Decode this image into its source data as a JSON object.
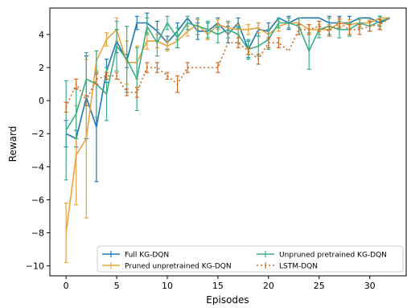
{
  "chart_data": {
    "type": "line",
    "title": "",
    "xlabel": "Episodes",
    "ylabel": "Reward",
    "xlim": [
      -1.6,
      33.6
    ],
    "ylim": [
      -10.6,
      5.6
    ],
    "xticks": [
      0,
      5,
      10,
      15,
      20,
      25,
      30
    ],
    "yticks": [
      -10,
      -8,
      -6,
      -4,
      -2,
      0,
      2,
      4
    ],
    "grid": false,
    "legend": {
      "placement": "lower-right",
      "columns": 2
    },
    "series": [
      {
        "name": "Full KG-DQN",
        "color": "#1f77b4",
        "style": "solid",
        "x": [
          0,
          1,
          2,
          3,
          4,
          5,
          6,
          7,
          8,
          9,
          10,
          11,
          12,
          13,
          14,
          15,
          16,
          17,
          18,
          19,
          20,
          21,
          22,
          23,
          24,
          25,
          26,
          27,
          28,
          29,
          30,
          31,
          32
        ],
        "y": [
          -2.0,
          -2.3,
          0.2,
          -1.6,
          1.8,
          3.6,
          2.4,
          4.7,
          4.7,
          4.2,
          3.5,
          4.2,
          5.0,
          4.2,
          4.2,
          4.7,
          4.0,
          4.7,
          3.1,
          4.3,
          4.2,
          5.0,
          4.7,
          5.0,
          5.0,
          5.0,
          4.7,
          4.7,
          4.7,
          5.0,
          5.0,
          4.7,
          5.0
        ],
        "err": [
          0.8,
          0.5,
          2.5,
          3.3,
          0.7,
          0.7,
          0.4,
          0.4,
          0.6,
          0.6,
          0.4,
          0.5,
          0.0,
          0.5,
          0.5,
          0.3,
          0.5,
          0.3,
          0.5,
          0.4,
          0.5,
          0.0,
          0.4,
          0.0,
          0.0,
          0.0,
          0.4,
          0.4,
          0.4,
          0.0,
          0.0,
          0.4,
          0.0
        ]
      },
      {
        "name": "Pruned unpretrained KG-DQN",
        "color": "#e8a33c",
        "style": "solid",
        "x": [
          0,
          1,
          2,
          3,
          4,
          5,
          6,
          7,
          8,
          9,
          10,
          11,
          12,
          13,
          14,
          15,
          16,
          17,
          18,
          19,
          20,
          21,
          22,
          23,
          24,
          25,
          26,
          27,
          28,
          29,
          30,
          31,
          32
        ],
        "y": [
          -8.0,
          -3.3,
          -2.3,
          2.4,
          3.7,
          4.3,
          2.3,
          2.3,
          3.6,
          3.6,
          3.3,
          3.6,
          4.2,
          4.6,
          4.0,
          4.6,
          4.4,
          4.3,
          4.3,
          4.4,
          4.0,
          4.5,
          4.7,
          4.7,
          4.3,
          4.3,
          4.3,
          4.7,
          4.6,
          4.7,
          4.7,
          5.0,
          5.0
        ],
        "err": [
          1.8,
          3.0,
          4.8,
          0.6,
          0.4,
          0.7,
          1.3,
          1.0,
          0.5,
          0.4,
          0.3,
          0.4,
          0.3,
          0.3,
          0.3,
          0.3,
          0.3,
          0.3,
          0.3,
          0.3,
          0.3,
          0.3,
          0.3,
          0.3,
          0.3,
          0.3,
          0.3,
          0.2,
          0.3,
          0.2,
          0.2,
          0.0,
          0.0
        ]
      },
      {
        "name": "Unpruned pretrained KG-DQN",
        "color": "#3aaf85",
        "style": "solid",
        "x": [
          0,
          1,
          2,
          3,
          4,
          5,
          6,
          7,
          8,
          9,
          10,
          11,
          12,
          13,
          14,
          15,
          16,
          17,
          18,
          19,
          20,
          21,
          22,
          23,
          24,
          25,
          26,
          27,
          28,
          29,
          30,
          31,
          32
        ],
        "y": [
          -1.8,
          -0.8,
          1.3,
          1.0,
          0.4,
          3.3,
          2.5,
          1.3,
          4.5,
          3.5,
          4.7,
          3.8,
          4.7,
          4.5,
          4.3,
          4.0,
          4.3,
          4.0,
          3.1,
          3.3,
          3.7,
          4.7,
          4.7,
          4.5,
          3.0,
          4.3,
          4.5,
          4.3,
          4.3,
          4.7,
          4.5,
          4.8,
          5.0
        ],
        "err": [
          3.0,
          1.5,
          1.6,
          2.0,
          1.6,
          1.5,
          2.0,
          1.9,
          0.5,
          0.8,
          0.4,
          0.6,
          0.4,
          0.5,
          0.5,
          0.5,
          0.5,
          0.5,
          0.6,
          0.6,
          0.6,
          0.3,
          0.3,
          0.5,
          1.1,
          0.5,
          0.5,
          0.5,
          0.4,
          0.3,
          0.3,
          0.3,
          0.0
        ]
      },
      {
        "name": "LSTM-DQN",
        "color": "#d2691e",
        "style": "dotted",
        "x": [
          0,
          1,
          2,
          3,
          4,
          5,
          6,
          7,
          8,
          9,
          10,
          11,
          12,
          13,
          14,
          15,
          16,
          17,
          18,
          19,
          20,
          21,
          22,
          23,
          24,
          25,
          26,
          27,
          28,
          29,
          30,
          31,
          32
        ],
        "y": [
          -0.4,
          1.0,
          0.0,
          1.3,
          1.5,
          1.5,
          0.5,
          0.5,
          2.0,
          2.0,
          1.5,
          1.0,
          2.0,
          2.0,
          2.0,
          2.0,
          3.5,
          3.5,
          3.0,
          2.5,
          3.5,
          3.5,
          3.0,
          4.3,
          4.3,
          4.5,
          4.2,
          4.7,
          4.3,
          4.3,
          4.5,
          4.6,
          5.0
        ],
        "err": [
          0.3,
          0.3,
          0.3,
          0.3,
          0.2,
          0.2,
          0.2,
          0.3,
          0.3,
          0.3,
          0.2,
          0.5,
          0.3,
          0.0,
          0.0,
          0.3,
          0.0,
          0.3,
          0.2,
          0.3,
          0.3,
          0.3,
          0.0,
          0.3,
          0.3,
          0.3,
          0.3,
          0.3,
          0.3,
          0.3,
          0.3,
          0.3,
          0.0
        ]
      }
    ]
  }
}
